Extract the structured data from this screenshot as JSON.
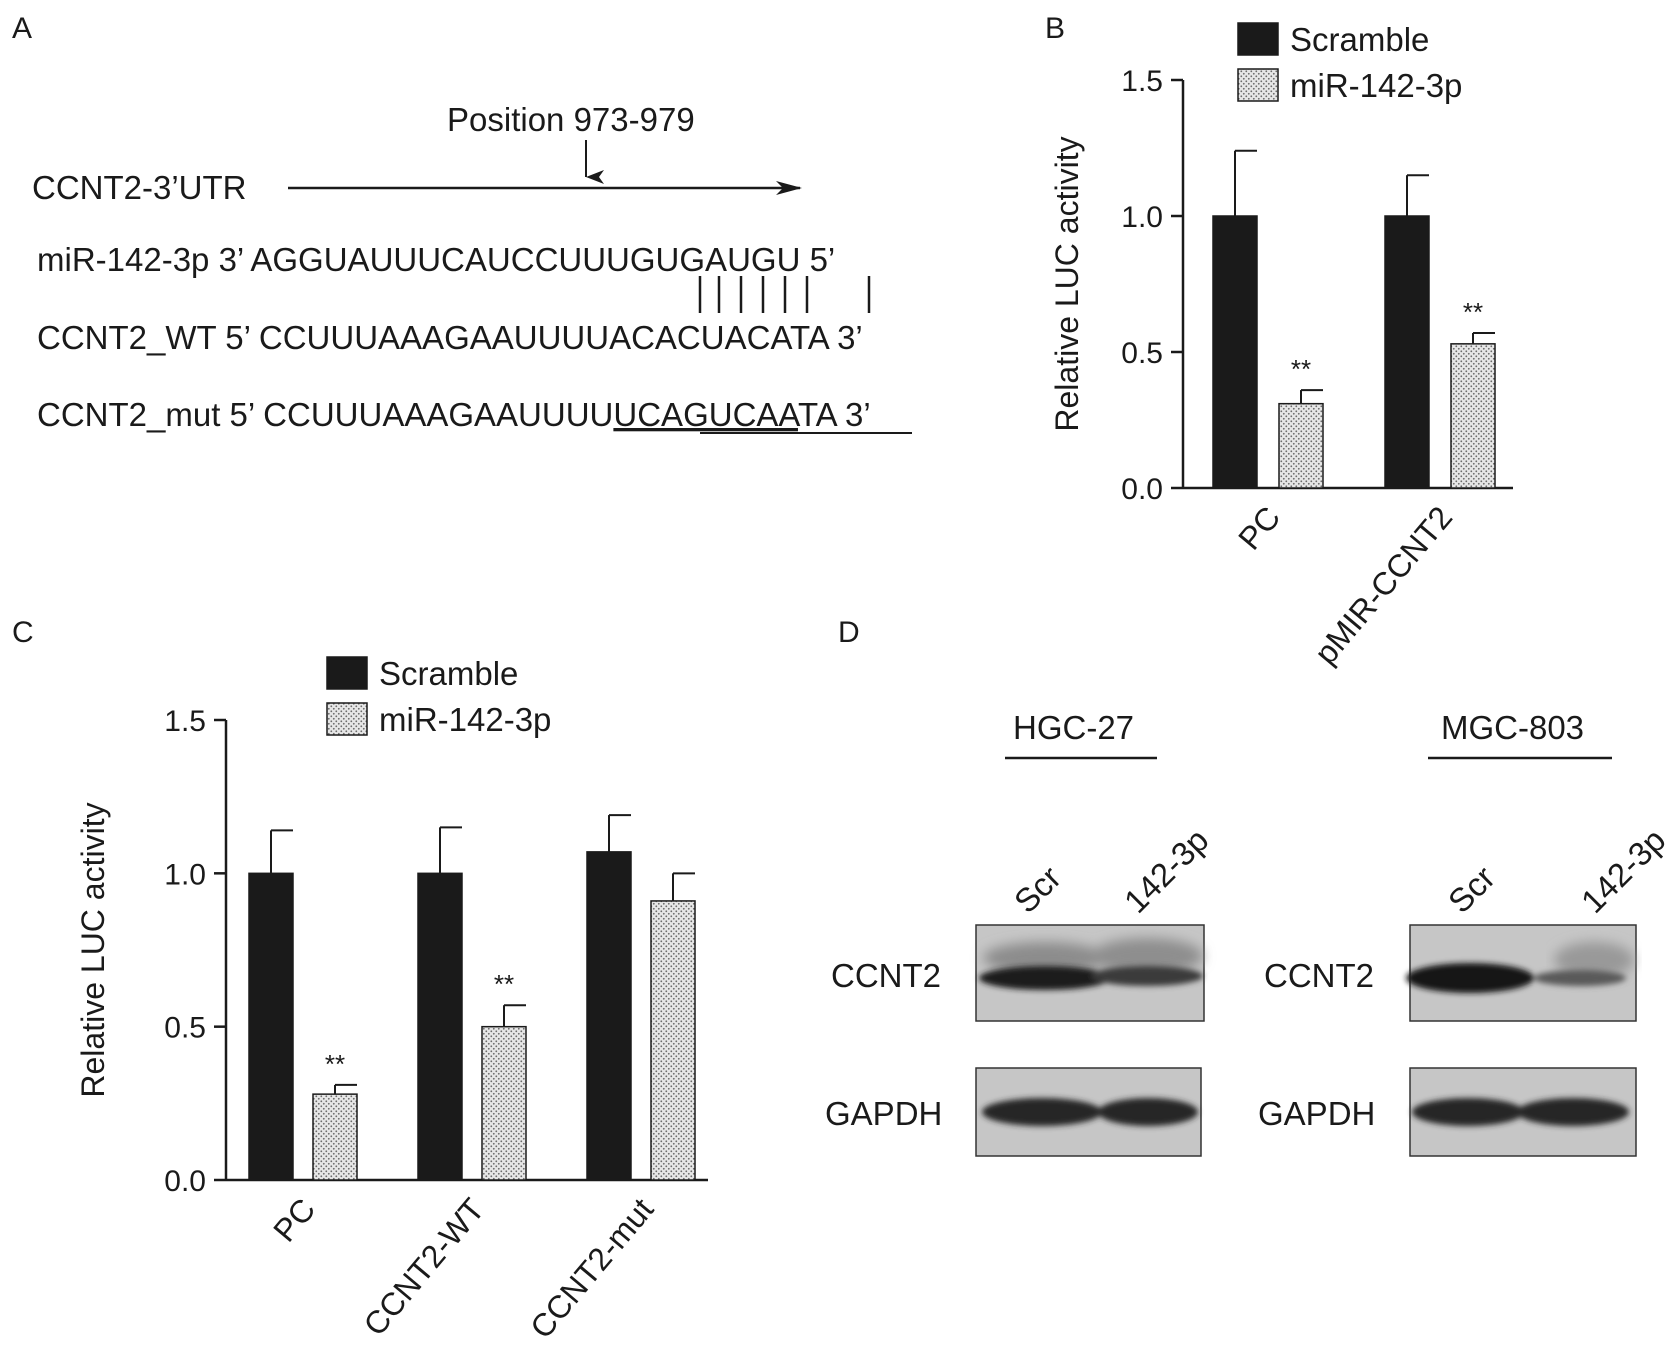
{
  "panelA": {
    "letter": "A",
    "position_label": "Position 973-979",
    "utr_label": "CCNT2-3’UTR",
    "mirna": {
      "prefix": "miR-142-3p 3’ ",
      "seq": "AGGUAUUUCAUCCUUUGUGAUGU",
      "suffix": " 5’"
    },
    "wt": {
      "prefix": "CCNT2_WT 5’ ",
      "seq": "CCUUUAAAGAAUUUUACACUACATA",
      "suffix": " 3’"
    },
    "mut": {
      "prefix": "CCNT2_mut 5’ ",
      "seq_plain": "CCUUUAAAGAAUUUU",
      "seq_under": "UCAGUCAA",
      "seq_tail": "TA",
      "suffix": " 3’"
    },
    "pairing_bars": "| | | | | | |"
  },
  "panelB": {
    "letter": "B",
    "chart_data": {
      "type": "bar",
      "categories": [
        "PC",
        "pMIR-CCNT2"
      ],
      "series": [
        {
          "name": "Scramble",
          "values": [
            1.0,
            1.0
          ],
          "errors": [
            0.24,
            0.15
          ],
          "color": "#1a1a1a",
          "sig": [
            "",
            ""
          ]
        },
        {
          "name": "miR-142-3p",
          "values": [
            0.31,
            0.53
          ],
          "errors": [
            0.05,
            0.04
          ],
          "color": "#d4d4d4",
          "sig": [
            "**",
            "**"
          ]
        }
      ],
      "xlabel": "",
      "ylabel": "Relative LUC activity",
      "ylim": [
        0,
        1.5
      ],
      "yticks": [
        "0.0",
        "0.5",
        "1.0",
        "1.5"
      ],
      "legend": "top"
    }
  },
  "panelC": {
    "letter": "C",
    "chart_data": {
      "type": "bar",
      "categories": [
        "PC",
        "CCNT2-WT",
        "CCNT2-mut"
      ],
      "series": [
        {
          "name": "Scramble",
          "values": [
            1.0,
            1.0,
            1.07
          ],
          "errors": [
            0.14,
            0.15,
            0.12
          ],
          "color": "#1a1a1a",
          "sig": [
            "",
            "",
            ""
          ]
        },
        {
          "name": "miR-142-3p",
          "values": [
            0.28,
            0.5,
            0.91
          ],
          "errors": [
            0.03,
            0.07,
            0.09
          ],
          "color": "#d4d4d4",
          "sig": [
            "**",
            "**",
            ""
          ]
        }
      ],
      "xlabel": "",
      "ylabel": "Relative LUC activity",
      "ylim": [
        0,
        1.5
      ],
      "yticks": [
        "0.0",
        "0.5",
        "1.0",
        "1.5"
      ],
      "legend": "top"
    }
  },
  "panelD": {
    "letter": "D",
    "cell_lines": [
      {
        "name": "HGC-27",
        "lanes": [
          "Scr",
          "142-3p"
        ],
        "rows": [
          "CCNT2",
          "GAPDH"
        ]
      },
      {
        "name": "MGC-803",
        "lanes": [
          "Scr",
          "142-3p"
        ],
        "rows": [
          "CCNT2",
          "GAPDH"
        ]
      }
    ]
  }
}
